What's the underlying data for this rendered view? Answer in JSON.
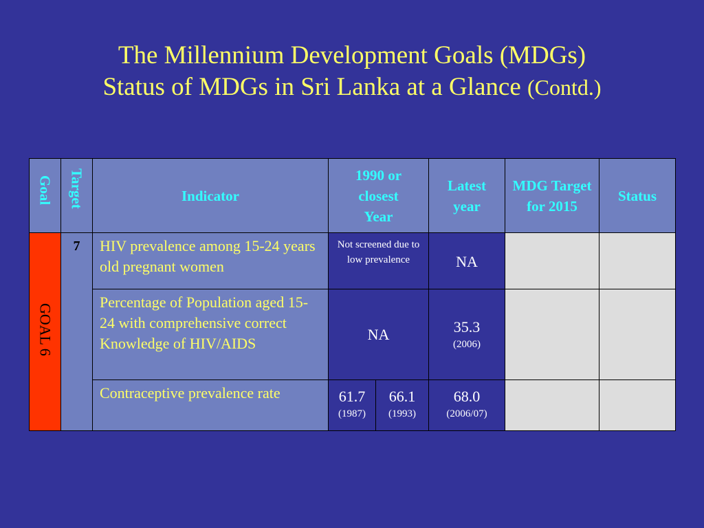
{
  "title": {
    "line1": "The Millennium Development Goals (MDGs)",
    "line2_main": "Status of MDGs in Sri Lanka at a Glance ",
    "line2_small": "(Contd.)"
  },
  "table": {
    "headers": {
      "goal": "Goal",
      "target": "Target",
      "indicator": "Indicator",
      "year1990": "1990 or closest Year",
      "latest": "Latest year",
      "mdg_target": "MDG Target for 2015",
      "status": "Status"
    },
    "goal_label": "GOAL 6",
    "target_number": "7",
    "rows": [
      {
        "indicator": "HIV prevalence among 15-24 years old pregnant women",
        "year1990": "Not screened due to low prevalence",
        "latest": "NA"
      },
      {
        "indicator": "Percentage of   Population aged 15-24 with comprehensive correct Knowledge of HIV/AIDS",
        "year1990": "NA",
        "latest_value": "35.3",
        "latest_year": "(2006)"
      },
      {
        "indicator": "Contraceptive  prevalence rate",
        "year1990_a_value": "61.7",
        "year1990_a_year": "(1987)",
        "year1990_b_value": "66.1",
        "year1990_b_year": "(1993)",
        "latest_value": "68.0",
        "latest_year": "(2006/07)"
      }
    ]
  },
  "colors": {
    "background": "#333399",
    "title": "#FFFF66",
    "header_text": "#33FFFF",
    "header_bg": "#7080C0",
    "goal_bg": "#FF3300",
    "empty_cell": "#DDDDDD"
  }
}
